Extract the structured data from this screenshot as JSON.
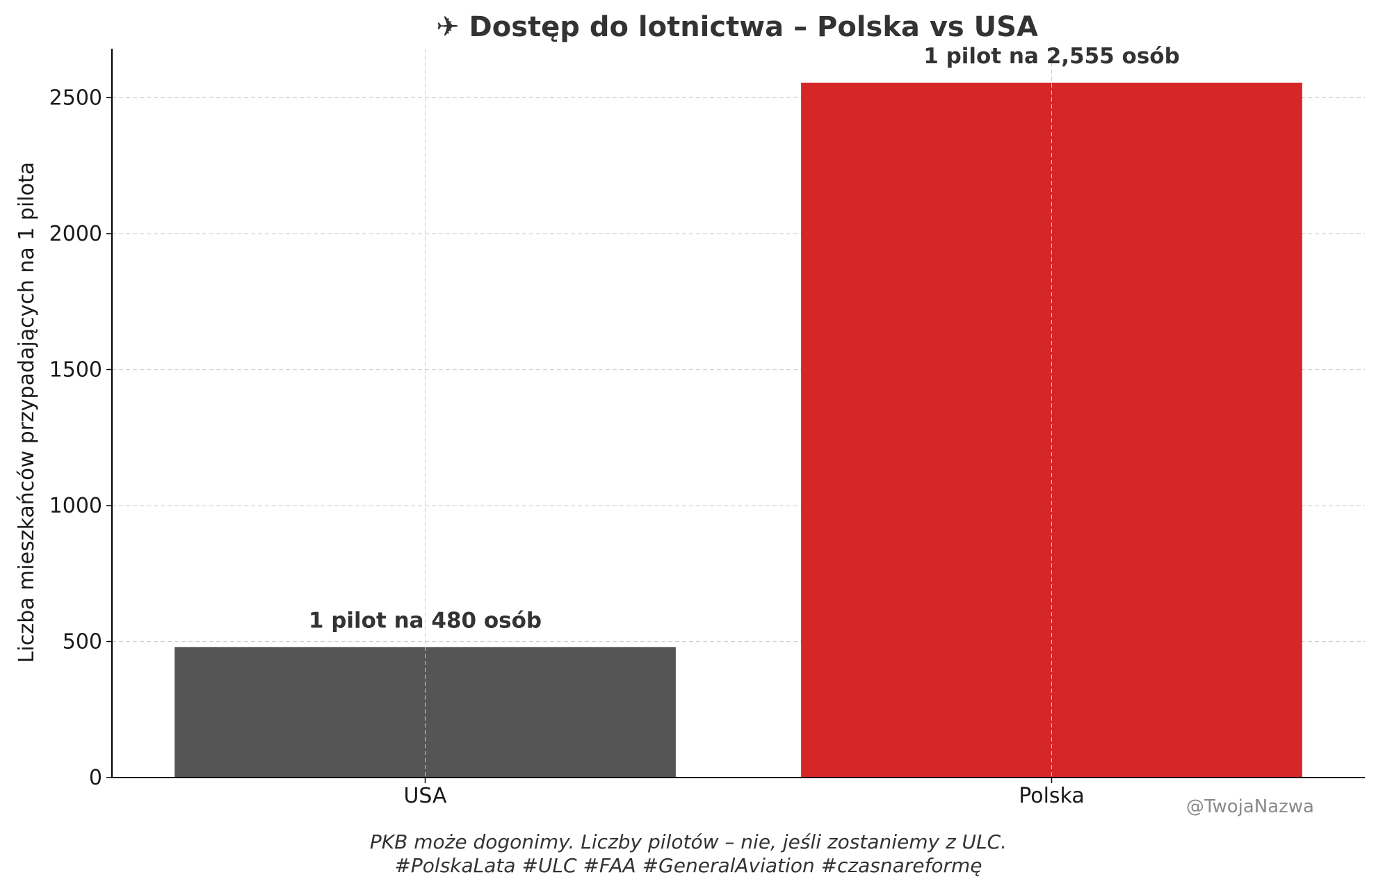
{
  "chart_data": {
    "type": "bar",
    "title": "✈ Dostęp do lotnictwa – Polska vs USA",
    "xlabel": "",
    "ylabel": "Liczba mieszkańców przypadających na 1 pilota",
    "categories": [
      "USA",
      "Polska"
    ],
    "values": [
      480,
      2555
    ],
    "colors": [
      "#555555",
      "#d62728"
    ],
    "bar_labels": [
      "1 pilot na 480 osób",
      "1 pilot na 2,555 osób"
    ],
    "ylim": [
      0,
      2680
    ],
    "yticks": [
      0,
      500,
      1000,
      1500,
      2000,
      2500
    ],
    "grid": true,
    "legend": "none"
  },
  "footer": {
    "caption_line1": "PKB może dogonimy. Liczby pilotów – nie, jeśli zostaniemy z ULC.",
    "caption_line2": "#PolskaLata #ULC #FAA #GeneralAviation #czasnareformę"
  },
  "watermark": "@TwojaNazwa"
}
